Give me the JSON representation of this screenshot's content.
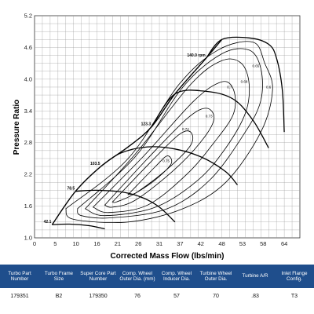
{
  "chart_data": {
    "type": "line",
    "title": "",
    "xlabel": "Corrected Mass Flow (lbs/min)",
    "ylabel": "Pressure Ratio",
    "xlim": [
      0,
      68
    ],
    "ylim": [
      1.0,
      5.2
    ],
    "xticks": [
      "0",
      "5",
      "10",
      "16",
      "21",
      "26",
      "31",
      "37",
      "42",
      "48",
      "53",
      "58",
      "64"
    ],
    "xtick_values": [
      0,
      5.3,
      10.6,
      16,
      21.3,
      26.6,
      32,
      37.3,
      42.6,
      48,
      53.3,
      58.6,
      64
    ],
    "yticks": [
      "1.0",
      "1.6",
      "2.2",
      "2.8",
      "3.4",
      "4.0",
      "4.6",
      "5.2"
    ],
    "ytick_values": [
      1.0,
      1.6,
      2.2,
      2.8,
      3.4,
      4.0,
      4.6,
      5.2
    ],
    "grid": true,
    "surge_line": [
      [
        4.5,
        1.25
      ],
      [
        10.5,
        1.88
      ],
      [
        17,
        2.35
      ],
      [
        24,
        2.72
      ],
      [
        30,
        3.1
      ],
      [
        36,
        3.72
      ],
      [
        44,
        4.4
      ],
      [
        48,
        4.75
      ]
    ],
    "speed_lines": [
      {
        "label": "42.1",
        "points": [
          [
            4.5,
            1.25
          ],
          [
            9,
            1.26
          ],
          [
            14,
            1.23
          ],
          [
            18,
            1.17
          ]
        ]
      },
      {
        "label": "78.5",
        "points": [
          [
            10.5,
            1.88
          ],
          [
            16,
            1.9
          ],
          [
            23,
            1.86
          ],
          [
            28,
            1.75
          ],
          [
            32,
            1.58
          ],
          [
            36,
            1.3
          ]
        ]
      },
      {
        "label": "103.5",
        "points": [
          [
            17,
            2.35
          ],
          [
            22,
            2.6
          ],
          [
            29,
            2.72
          ],
          [
            36,
            2.68
          ],
          [
            43,
            2.52
          ],
          [
            49,
            2.25
          ],
          [
            52,
            2.0
          ]
        ]
      },
      {
        "label": "123.3",
        "points": [
          [
            30,
            3.1
          ],
          [
            36,
            3.72
          ],
          [
            44,
            3.77
          ],
          [
            51,
            3.62
          ],
          [
            56,
            3.22
          ],
          [
            60,
            2.7
          ]
        ]
      },
      {
        "label": "140.0 rpm",
        "points": [
          [
            44,
            4.4
          ],
          [
            48,
            4.75
          ],
          [
            55,
            4.78
          ],
          [
            60,
            4.66
          ],
          [
            62,
            4.4
          ],
          [
            63.5,
            3.8
          ],
          [
            64,
            3.0
          ]
        ]
      }
    ],
    "efficiency_islands": [
      {
        "label": "0.6",
        "points": [
          [
            8,
            1.55
          ],
          [
            24,
            2.5
          ],
          [
            37,
            3.9
          ],
          [
            47,
            4.55
          ],
          [
            56,
            4.7
          ],
          [
            59,
            4.3
          ],
          [
            61,
            3.8
          ],
          [
            58,
            3.0
          ],
          [
            49,
            2.05
          ],
          [
            38,
            1.55
          ],
          [
            24,
            1.3
          ],
          [
            10,
            1.35
          ],
          [
            8,
            1.55
          ]
        ]
      },
      {
        "label": "0.65",
        "points": [
          [
            11,
            1.55
          ],
          [
            26,
            2.55
          ],
          [
            38,
            3.85
          ],
          [
            48,
            4.48
          ],
          [
            55,
            4.55
          ],
          [
            58,
            4.2
          ],
          [
            58,
            3.6
          ],
          [
            54,
            3.0
          ],
          [
            45,
            2.1
          ],
          [
            34,
            1.55
          ],
          [
            20,
            1.38
          ],
          [
            12,
            1.42
          ],
          [
            11,
            1.55
          ]
        ]
      },
      {
        "label": "0.68",
        "points": [
          [
            13,
            1.55
          ],
          [
            26,
            2.6
          ],
          [
            40,
            3.9
          ],
          [
            48,
            4.35
          ],
          [
            53,
            4.3
          ],
          [
            55,
            3.9
          ],
          [
            54,
            3.35
          ],
          [
            49,
            2.7
          ],
          [
            42,
            2.1
          ],
          [
            31,
            1.58
          ],
          [
            18,
            1.42
          ],
          [
            13,
            1.55
          ]
        ]
      },
      {
        "label": "0.7",
        "points": [
          [
            15,
            1.58
          ],
          [
            28,
            2.55
          ],
          [
            41,
            3.6
          ],
          [
            48,
            3.95
          ],
          [
            51,
            3.8
          ],
          [
            51,
            3.35
          ],
          [
            46,
            2.8
          ],
          [
            39,
            2.2
          ],
          [
            29,
            1.62
          ],
          [
            19,
            1.48
          ],
          [
            15,
            1.58
          ]
        ]
      },
      {
        "label": "0.73",
        "points": [
          [
            18,
            1.62
          ],
          [
            29,
            2.5
          ],
          [
            39,
            3.25
          ],
          [
            44,
            3.45
          ],
          [
            46,
            3.25
          ],
          [
            43,
            2.85
          ],
          [
            36,
            2.3
          ],
          [
            26,
            1.72
          ],
          [
            20,
            1.58
          ],
          [
            18,
            1.62
          ]
        ]
      },
      {
        "label": "0.74",
        "points": [
          [
            20,
            1.68
          ],
          [
            30,
            2.45
          ],
          [
            37,
            2.95
          ],
          [
            40,
            3.0
          ],
          [
            40,
            2.75
          ],
          [
            34,
            2.3
          ],
          [
            26,
            1.85
          ],
          [
            21,
            1.68
          ],
          [
            20,
            1.68
          ]
        ]
      },
      {
        "label": "0.75",
        "points": [
          [
            24,
            1.82
          ],
          [
            31,
            2.35
          ],
          [
            34,
            2.55
          ],
          [
            35,
            2.4
          ],
          [
            31,
            2.1
          ],
          [
            26,
            1.85
          ],
          [
            24,
            1.82
          ]
        ]
      }
    ],
    "table": {
      "headers": [
        "Turbo Part Number",
        "Turbo Frame Size",
        "Super Core Part Number",
        "Comp. Wheel Outer Dia. (mm)",
        "Comp. Wheel Inducer Dia.",
        "Turbine Wheel Outer Dia.",
        "Turbine A/R",
        "Inlet Flange Config."
      ],
      "rows": [
        [
          "179351",
          "B2",
          "179350",
          "76",
          "57",
          "70",
          ".83",
          "T3"
        ]
      ]
    }
  },
  "colors": {
    "line": "#000000",
    "grid": "#9a9a9a",
    "header_bg": "#1f4e8c",
    "header_text": "#ffffff"
  }
}
